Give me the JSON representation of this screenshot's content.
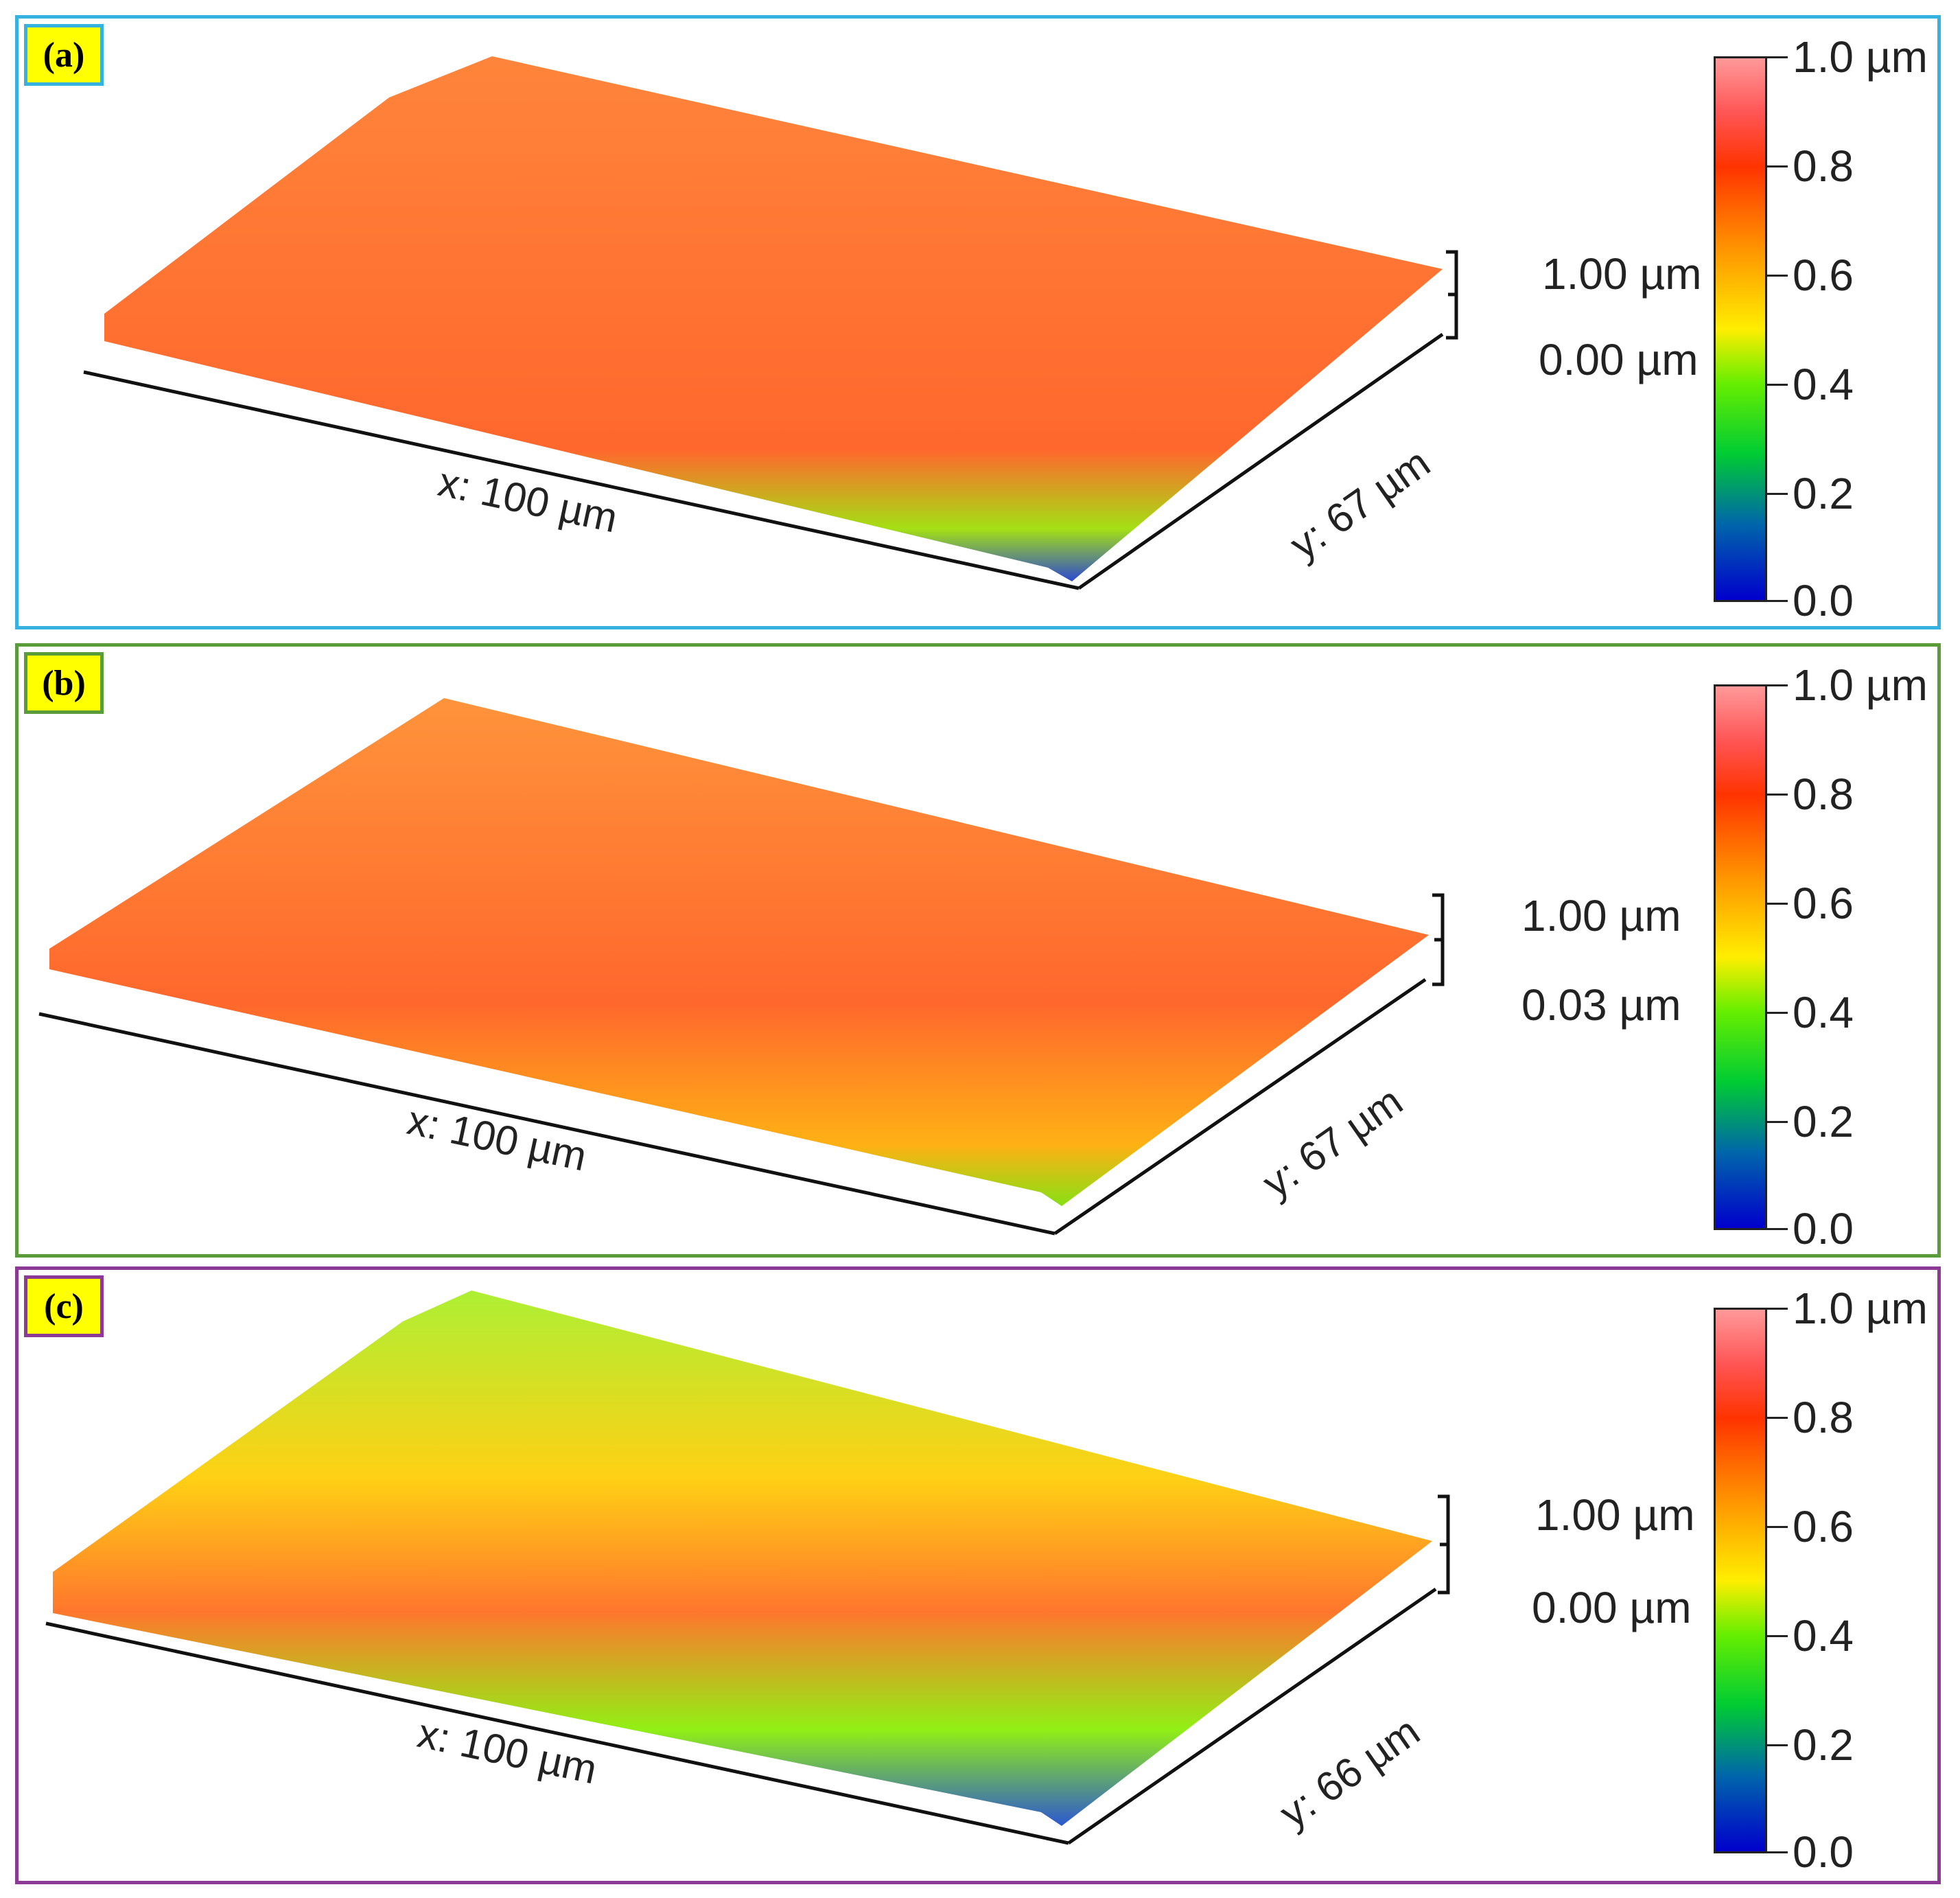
{
  "figure": {
    "panels": [
      {
        "id": "a",
        "tag": "(a)",
        "x_label": "x: 100 µm",
        "y_label": "y: 67 µm",
        "scale_top": "1.00 µm",
        "scale_bottom": "0.00 µm",
        "colorbar_ticks": [
          "1.0 µm",
          "0.8",
          "0.6",
          "0.4",
          "0.2",
          "0.0"
        ]
      },
      {
        "id": "b",
        "tag": "(b)",
        "x_label": "x: 100 µm",
        "y_label": "y: 67 µm",
        "scale_top": "1.00 µm",
        "scale_bottom": "0.03 µm",
        "colorbar_ticks": [
          "1.0 µm",
          "0.8",
          "0.6",
          "0.4",
          "0.2",
          "0.0"
        ]
      },
      {
        "id": "c",
        "tag": "(c)",
        "x_label": "x: 100 µm",
        "y_label": "y: 66 µm",
        "scale_top": "1.00 µm",
        "scale_bottom": "0.00 µm",
        "colorbar_ticks": [
          "1.0 µm",
          "0.8",
          "0.6",
          "0.4",
          "0.2",
          "0.0"
        ]
      }
    ],
    "colors": {
      "panel_a_border": "#35b2e0",
      "panel_b_border": "#5a9c3a",
      "panel_c_border": "#8d3a96",
      "tag_background": "#ffff00"
    }
  }
}
